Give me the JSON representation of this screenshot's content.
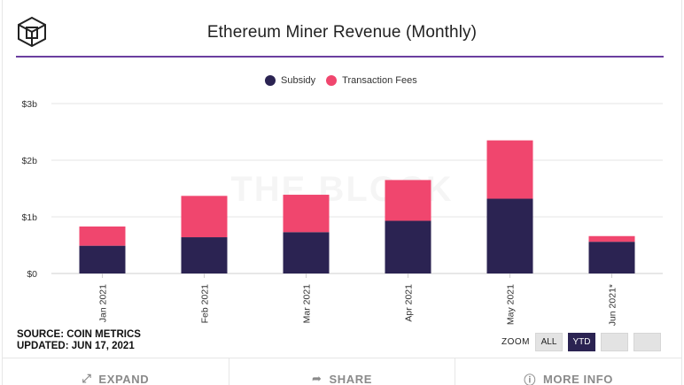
{
  "header": {
    "title": "Ethereum Miner Revenue (Monthly)",
    "logo_icon": "cube-logo-icon"
  },
  "colors": {
    "subsidy": "#2b2352",
    "transaction_fees": "#f0466e",
    "accent_rule": "#6b3fa0"
  },
  "legend": {
    "items": [
      {
        "label": "Subsidy"
      },
      {
        "label": "Transaction Fees"
      }
    ]
  },
  "watermark": "THE BLOCK",
  "chart_data": {
    "type": "bar",
    "stacked": true,
    "title": "Ethereum Miner Revenue (Monthly)",
    "categories": [
      "Jan 2021",
      "Feb 2021",
      "Mar 2021",
      "Apr 2021",
      "May 2021",
      "Jun 2021*"
    ],
    "series": [
      {
        "name": "Subsidy",
        "values": [
          0.49,
          0.64,
          0.73,
          0.93,
          1.32,
          0.56
        ]
      },
      {
        "name": "Transaction Fees",
        "values": [
          0.34,
          0.73,
          0.66,
          0.72,
          1.03,
          0.1
        ]
      }
    ],
    "yticks": [
      {
        "value": 0,
        "label": "$0"
      },
      {
        "value": 1,
        "label": "$1b"
      },
      {
        "value": 2,
        "label": "$2b"
      },
      {
        "value": 3,
        "label": "$3b"
      }
    ],
    "ylim": [
      0,
      3
    ],
    "xlabel": "",
    "ylabel": "",
    "grid": true,
    "legend_position": "top-center"
  },
  "source": {
    "line1": "SOURCE: COIN METRICS",
    "line2": "UPDATED: JUN 17, 2021"
  },
  "zoom": {
    "label": "ZOOM",
    "buttons": [
      {
        "label": "ALL",
        "active": false
      },
      {
        "label": "YTD",
        "active": true
      },
      {
        "label": "",
        "active": false
      },
      {
        "label": "",
        "active": false
      }
    ]
  },
  "footer": {
    "buttons": [
      {
        "label": "EXPAND",
        "icon": "expand-icon"
      },
      {
        "label": "SHARE",
        "icon": "share-icon"
      },
      {
        "label": "MORE INFO",
        "icon": "info-icon"
      }
    ]
  }
}
